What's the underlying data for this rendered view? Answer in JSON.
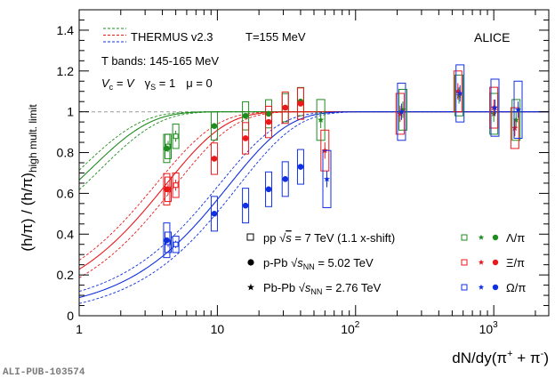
{
  "chart_data": {
    "type": "scatter",
    "xlabel": "dN/dy(π⁺ + π⁻)",
    "ylabel": "(h/π) / (h/π)high mult. limit",
    "x_scale": "log",
    "xlim": [
      1,
      2500
    ],
    "ylim": [
      0,
      1.5
    ],
    "x_ticks": [
      {
        "label": "1",
        "value": 1
      },
      {
        "label": "10",
        "value": 10
      },
      {
        "label": "10²",
        "value": 100
      },
      {
        "label": "10³",
        "value": 1000
      }
    ],
    "y_ticks": [
      "0",
      "0.2",
      "0.4",
      "0.6",
      "0.8",
      "1",
      "1.2",
      "1.4"
    ],
    "y_tick_values": [
      0,
      0.2,
      0.4,
      0.6,
      0.8,
      1.0,
      1.2,
      1.4
    ],
    "reference_line": 1.0,
    "experiment_label": "ALICE",
    "watermark": "ALI-PUB-103574",
    "model": {
      "legend_label": "THERMUS v2.3",
      "temperature": "T=155 MeV",
      "bands": "T bands: 145-165 MeV",
      "params": [
        "V_c = V",
        "γ_S = 1",
        "μ = 0"
      ],
      "curve_params": [
        {
          "name": "Λ/π",
          "color": "#1f8c1f",
          "a": 0.77,
          "x0": 1.2
        },
        {
          "name": "Ξ/π",
          "color": "#e8191b",
          "a": 0.98,
          "x0": 4.2
        },
        {
          "name": "Ω/π",
          "color": "#1030e0",
          "a": 0.99,
          "x0": 12.0
        }
      ]
    },
    "legend_systems": [
      {
        "marker": "open-square",
        "label": "pp √s = 7 TeV (1.1 x-shift)"
      },
      {
        "marker": "filled-circle",
        "label": "p-Pb √sNN = 5.02 TeV"
      },
      {
        "marker": "star",
        "label": "Pb-Pb √sNN = 2.76 TeV"
      }
    ],
    "legend_species": [
      {
        "label": "Λ/π",
        "color": "#1f8c1f"
      },
      {
        "label": "Ξ/π",
        "color": "#e8191b"
      },
      {
        "label": "Ω/π",
        "color": "#1030e0"
      }
    ],
    "series": [
      {
        "name": "Λ/π",
        "system": "pp",
        "color": "#1f8c1f",
        "marker": "open-square",
        "x": [
          4.4,
          5.0
        ],
        "y": [
          0.83,
          0.88
        ],
        "err": [
          0.06,
          0.06
        ]
      },
      {
        "name": "Ξ/π",
        "system": "pp",
        "color": "#e8191b",
        "marker": "open-square",
        "x": [
          4.4,
          5.0
        ],
        "y": [
          0.62,
          0.64
        ],
        "err": [
          0.06,
          0.06
        ]
      },
      {
        "name": "Ω/π",
        "system": "pp",
        "color": "#1030e0",
        "marker": "open-square",
        "x": [
          4.4,
          5.0
        ],
        "y": [
          0.36,
          0.35
        ],
        "err": [
          0.05,
          0.04
        ]
      },
      {
        "name": "Λ/π",
        "system": "p-Pb",
        "color": "#1f8c1f",
        "marker": "filled-circle",
        "x": [
          4.3,
          9.5,
          16.0,
          23.5,
          31.0,
          40.0
        ],
        "y": [
          0.82,
          0.93,
          0.98,
          0.99,
          1.02,
          1.05
        ]
      },
      {
        "name": "Ξ/π",
        "system": "p-Pb",
        "color": "#e8191b",
        "marker": "filled-circle",
        "x": [
          4.3,
          9.5,
          16.0,
          23.5,
          31.0,
          40.0
        ],
        "y": [
          0.62,
          0.77,
          0.87,
          0.95,
          1.02,
          1.04
        ]
      },
      {
        "name": "Ω/π",
        "system": "p-Pb",
        "color": "#1030e0",
        "marker": "filled-circle",
        "x": [
          4.3,
          9.5,
          16.0,
          23.5,
          31.0,
          40.0
        ],
        "y": [
          0.37,
          0.5,
          0.54,
          0.62,
          0.67,
          0.73
        ]
      },
      {
        "name": "Λ/π",
        "system": "Pb-Pb",
        "color": "#1f8c1f",
        "marker": "star",
        "x": [
          56,
          220,
          560,
          1000,
          1450
        ],
        "y": [
          0.96,
          1.01,
          1.08,
          0.99,
          0.96
        ]
      },
      {
        "name": "Ξ/π",
        "system": "Pb-Pb",
        "color": "#e8191b",
        "marker": "star",
        "x": [
          60,
          210,
          550,
          1000,
          1420
        ],
        "y": [
          0.81,
          0.99,
          1.1,
          1.02,
          0.92
        ]
      },
      {
        "name": "Ω/π",
        "system": "Pb-Pb",
        "color": "#1030e0",
        "marker": "star",
        "x": [
          62,
          215,
          570,
          1020,
          1500
        ],
        "y": [
          0.67,
          1.0,
          1.09,
          1.02,
          1.01
        ]
      }
    ]
  }
}
